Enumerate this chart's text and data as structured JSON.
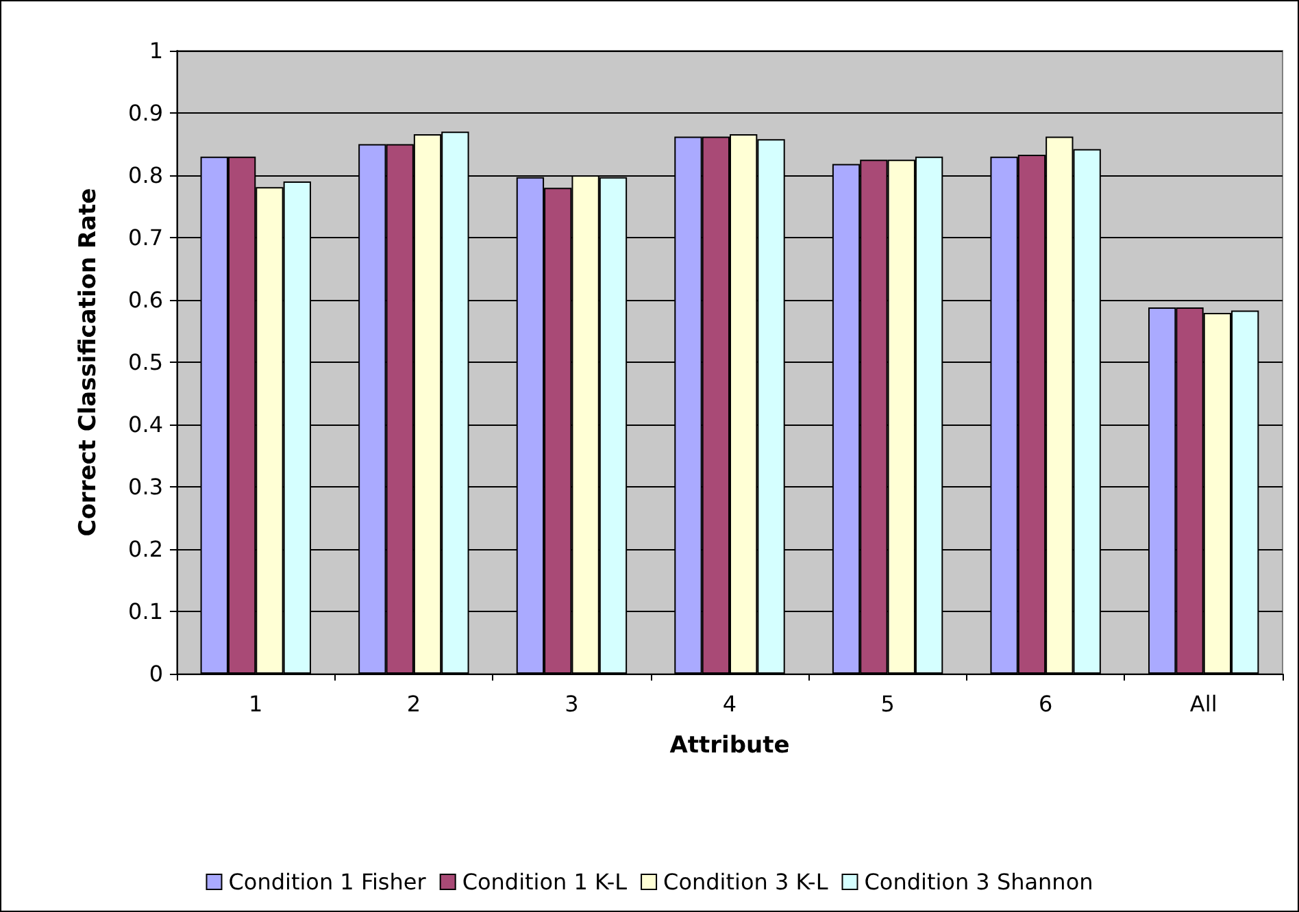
{
  "chart_data": {
    "type": "bar",
    "xlabel": "Attribute",
    "ylabel": "Correct Classification Rate",
    "categories": [
      "1",
      "2",
      "3",
      "4",
      "5",
      "6",
      "All"
    ],
    "series": [
      {
        "name": "Condition 1 Fisher",
        "color": "#aaaaff",
        "values": [
          0.83,
          0.85,
          0.797,
          0.862,
          0.818,
          0.83,
          0.588
        ]
      },
      {
        "name": "Condition 1 K-L",
        "color": "#a94a76",
        "values": [
          0.83,
          0.85,
          0.78,
          0.862,
          0.825,
          0.833,
          0.588
        ]
      },
      {
        "name": "Condition 3 K-L",
        "color": "#ffffd5",
        "values": [
          0.781,
          0.866,
          0.8,
          0.866,
          0.825,
          0.862,
          0.579
        ]
      },
      {
        "name": "Condition 3 Shannon",
        "color": "#d5ffff",
        "values": [
          0.79,
          0.87,
          0.797,
          0.858,
          0.83,
          0.842,
          0.583
        ]
      }
    ],
    "ylim": [
      0,
      1
    ],
    "yticks": [
      0,
      0.1,
      0.2,
      0.3,
      0.4,
      0.5,
      0.6,
      0.7,
      0.8,
      0.9,
      1
    ],
    "grid": "y",
    "legend": "bottom"
  }
}
